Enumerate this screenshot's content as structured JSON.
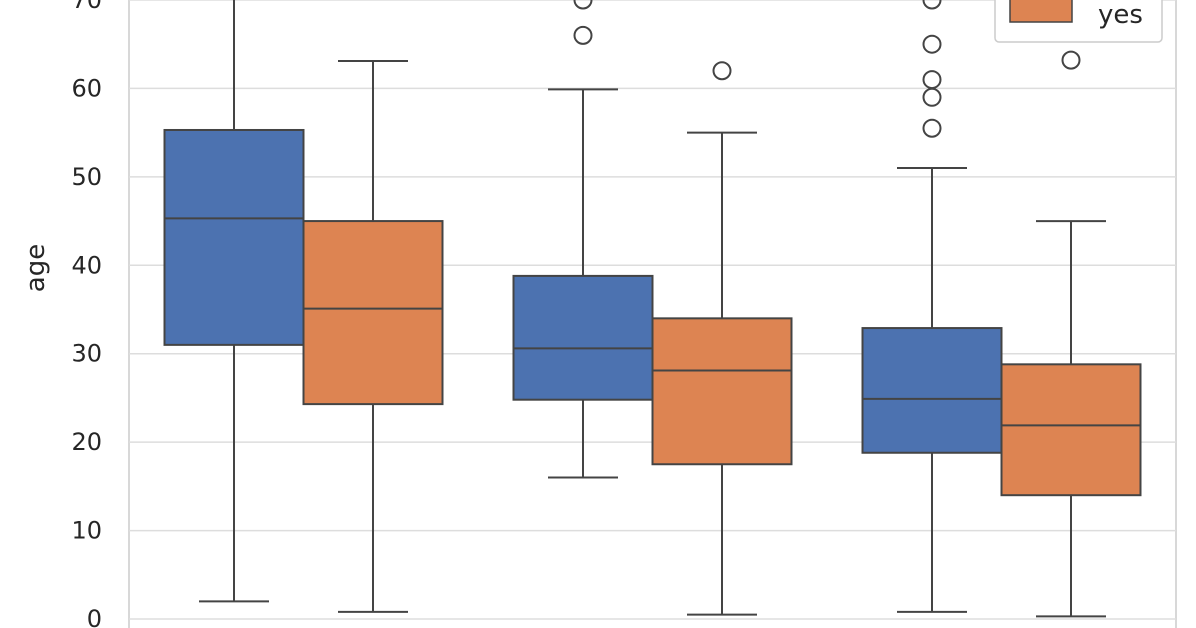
{
  "chart_data": {
    "type": "box",
    "ylabel": "age",
    "ylim": [
      0,
      70
    ],
    "yticks": [
      0,
      10,
      20,
      30,
      40,
      50,
      60,
      70
    ],
    "grid": true,
    "legend": {
      "placement": "top-right",
      "entries": [
        {
          "label": "yes",
          "color": "#dd8452"
        }
      ]
    },
    "series": [
      {
        "color": "#4c72b0",
        "boxes": [
          {
            "whisker_low": 2,
            "q1": 31,
            "median": 45.3,
            "q3": 55.3,
            "whisker_high": 72,
            "outliers": []
          },
          {
            "whisker_low": 16,
            "q1": 24.8,
            "median": 30.6,
            "q3": 38.8,
            "whisker_high": 59.9,
            "outliers": [
              66,
              70
            ]
          },
          {
            "whisker_low": 0.8,
            "q1": 18.8,
            "median": 24.9,
            "q3": 32.9,
            "whisker_high": 51,
            "outliers": [
              55.5,
              59,
              61,
              65,
              70
            ]
          }
        ]
      },
      {
        "name": "yes",
        "color": "#dd8452",
        "boxes": [
          {
            "whisker_low": 0.8,
            "q1": 24.3,
            "median": 35.1,
            "q3": 45,
            "whisker_high": 63.1,
            "outliers": []
          },
          {
            "whisker_low": 0.5,
            "q1": 17.5,
            "median": 28.1,
            "q3": 34,
            "whisker_high": 55,
            "outliers": [
              62
            ]
          },
          {
            "whisker_low": 0.3,
            "q1": 14,
            "median": 21.9,
            "q3": 28.8,
            "whisker_high": 45,
            "outliers": [
              63.2
            ]
          }
        ]
      }
    ],
    "group_count": 3
  }
}
